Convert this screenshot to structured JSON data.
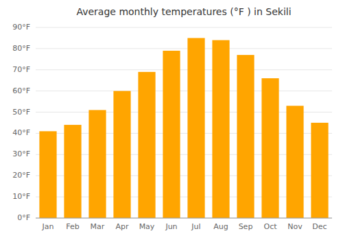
{
  "chart_data": {
    "type": "bar",
    "title": "Average monthly temperatures (°F ) in Sekili",
    "categories": [
      "Jan",
      "Feb",
      "Mar",
      "Apr",
      "May",
      "Jun",
      "Jul",
      "Aug",
      "Sep",
      "Oct",
      "Nov",
      "Dec"
    ],
    "values": [
      41,
      44,
      51,
      60,
      69,
      79,
      85,
      84,
      77,
      66,
      53,
      45
    ],
    "color": "#FFA500",
    "ylim": [
      0,
      90
    ],
    "yticks": [
      {
        "value": 0,
        "label": "0°F"
      },
      {
        "value": 10,
        "label": "10°F"
      },
      {
        "value": 20,
        "label": "20°F"
      },
      {
        "value": 30,
        "label": "30°F"
      },
      {
        "value": 40,
        "label": "40°F"
      },
      {
        "value": 50,
        "label": "50°F"
      },
      {
        "value": 60,
        "label": "60°F"
      },
      {
        "value": 70,
        "label": "70°F"
      },
      {
        "value": 80,
        "label": "80°F"
      },
      {
        "value": 90,
        "label": "90°F"
      }
    ],
    "grid": true
  }
}
